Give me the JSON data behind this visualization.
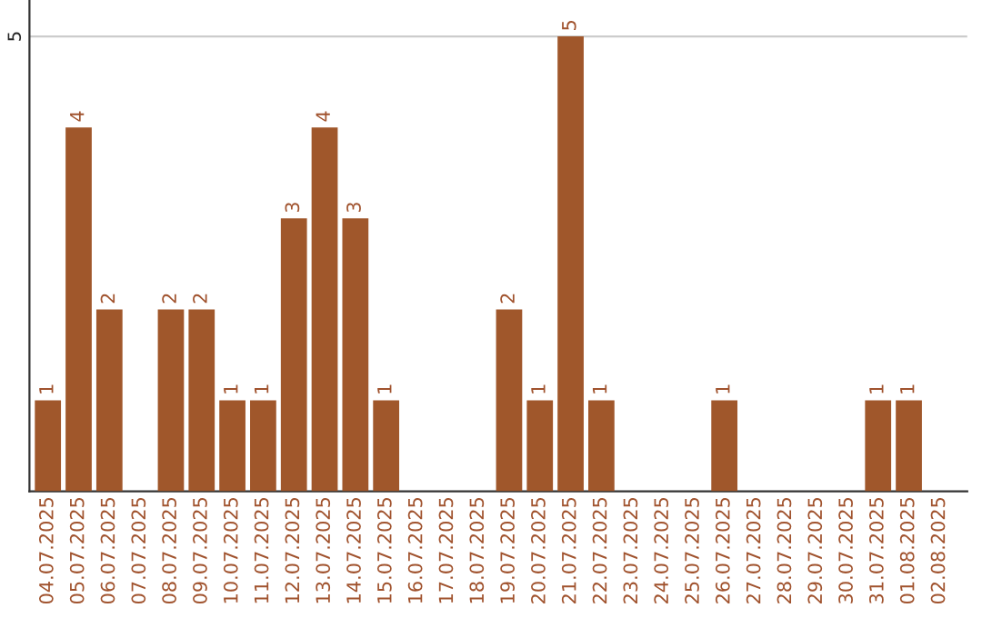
{
  "chart_data": {
    "type": "bar",
    "categories": [
      "04.07.2025",
      "05.07.2025",
      "06.07.2025",
      "07.07.2025",
      "08.07.2025",
      "09.07.2025",
      "10.07.2025",
      "11.07.2025",
      "12.07.2025",
      "13.07.2025",
      "14.07.2025",
      "15.07.2025",
      "16.07.2025",
      "17.07.2025",
      "18.07.2025",
      "19.07.2025",
      "20.07.2025",
      "21.07.2025",
      "22.07.2025",
      "23.07.2025",
      "24.07.2025",
      "25.07.2025",
      "26.07.2025",
      "27.07.2025",
      "28.07.2025",
      "29.07.2025",
      "30.07.2025",
      "31.07.2025",
      "01.08.2025",
      "02.08.2025"
    ],
    "values": [
      1,
      4,
      2,
      0,
      2,
      2,
      1,
      1,
      3,
      4,
      3,
      1,
      0,
      0,
      0,
      2,
      1,
      5,
      1,
      0,
      0,
      0,
      1,
      0,
      0,
      0,
      0,
      1,
      1,
      0
    ],
    "value_labels": [
      "1",
      "4",
      "2",
      null,
      "2",
      "2",
      "1",
      "1",
      "3",
      "4",
      "3",
      "1",
      null,
      null,
      null,
      "2",
      "1",
      "5",
      "1",
      null,
      null,
      null,
      "1",
      null,
      null,
      null,
      null,
      "1",
      "1",
      null
    ],
    "color": "#a0572b",
    "ylim": [
      0,
      5.4
    ],
    "yticks": [
      5
    ],
    "grid": "y"
  }
}
